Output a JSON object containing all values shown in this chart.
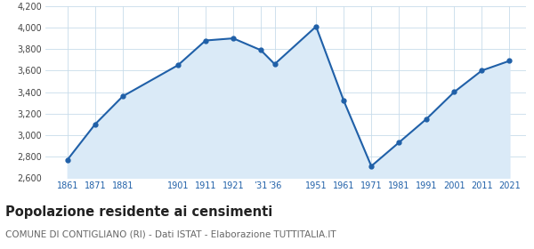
{
  "years": [
    1861,
    1871,
    1881,
    1901,
    1911,
    1921,
    1931,
    1936,
    1951,
    1961,
    1971,
    1981,
    1991,
    2001,
    2011,
    2021
  ],
  "population": [
    2771,
    3101,
    3361,
    3651,
    3881,
    3901,
    3791,
    3661,
    4011,
    3321,
    2711,
    2931,
    3151,
    3401,
    3601,
    3691
  ],
  "ylim": [
    2600,
    4200
  ],
  "yticks": [
    2600,
    2800,
    3000,
    3200,
    3400,
    3600,
    3800,
    4000,
    4200
  ],
  "x_tick_positions": [
    1861,
    1871,
    1881,
    1901,
    1911,
    1921,
    1931,
    1936,
    1951,
    1961,
    1971,
    1981,
    1991,
    2001,
    2011,
    2021
  ],
  "x_tick_labels": [
    "1861",
    "1871",
    "1881",
    "1901",
    "1911",
    "1921",
    "’31",
    "’36",
    "1951",
    "1961",
    "1971",
    "1981",
    "1991",
    "2001",
    "2011",
    "2021"
  ],
  "xlim_left": 1853,
  "xlim_right": 2027,
  "line_color": "#2060a8",
  "fill_color": "#daeaf7",
  "marker_color": "#2060a8",
  "bg_color": "#ffffff",
  "grid_color": "#c8dcea",
  "x_label_color": "#2060a8",
  "y_label_color": "#444444",
  "title": "Popolazione residente ai censimenti",
  "subtitle": "COMUNE DI CONTIGLIANO (RI) - Dati ISTAT - Elaborazione TUTTITALIA.IT",
  "title_fontsize": 10.5,
  "subtitle_fontsize": 7.5,
  "title_color": "#222222",
  "subtitle_color": "#666666"
}
